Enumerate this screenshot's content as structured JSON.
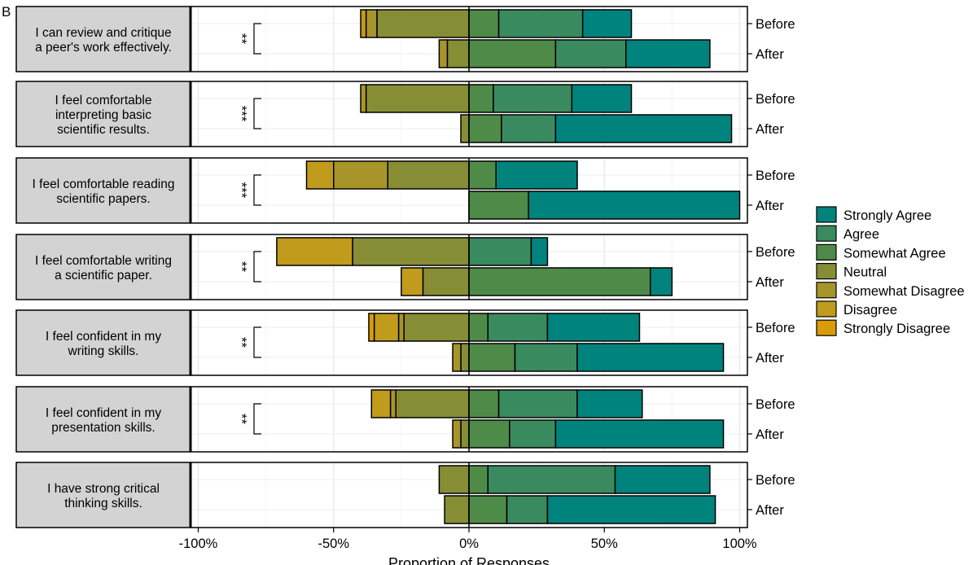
{
  "panel_label": "B",
  "chart_data": {
    "type": "bar",
    "orientation": "horizontal-diverging-stacked",
    "xlabel": "Proportion of Responses",
    "xlim": [
      -100,
      100
    ],
    "x_ticks": [
      -100,
      -50,
      0,
      50,
      100
    ],
    "x_tick_labels": [
      "-100%",
      "-50%",
      "0%",
      "50%",
      "100%"
    ],
    "grid": true,
    "legend_position": "right",
    "groups": [
      "Before",
      "After"
    ],
    "categories_order": [
      "Strongly Disagree",
      "Disagree",
      "Somewhat Disagree",
      "Neutral",
      "Somewhat Agree",
      "Agree",
      "Strongly Agree"
    ],
    "legend": [
      {
        "label": "Strongly Agree",
        "color": "#00837d"
      },
      {
        "label": "Agree",
        "color": "#3a8a60"
      },
      {
        "label": "Somewhat Agree",
        "color": "#4e8b48"
      },
      {
        "label": "Neutral",
        "color": "#878d35"
      },
      {
        "label": "Somewhat Disagree",
        "color": "#a89529"
      },
      {
        "label": "Disagree",
        "color": "#c09b1c"
      },
      {
        "label": "Strongly Disagree",
        "color": "#d99b07"
      }
    ],
    "colors": {
      "Strongly Disagree": "#d99b07",
      "Disagree": "#c09b1c",
      "Somewhat Disagree": "#a89529",
      "Neutral": "#878d35",
      "Somewhat Agree": "#4e8b48",
      "Agree": "#3a8a60",
      "Strongly Agree": "#00837d"
    },
    "panels": [
      {
        "question": [
          "I can review and critique",
          "a peer's work effectively."
        ],
        "significance": "**",
        "bars": [
          {
            "group": "Before",
            "Strongly Disagree": 0,
            "Disagree": 2,
            "Somewhat Disagree": 4,
            "Neutral": 34,
            "Somewhat Agree": 11,
            "Agree": 31,
            "Strongly Agree": 18
          },
          {
            "group": "After",
            "Strongly Disagree": 0,
            "Disagree": 0,
            "Somewhat Disagree": 3,
            "Neutral": 8,
            "Somewhat Agree": 32,
            "Agree": 26,
            "Strongly Agree": 31
          }
        ]
      },
      {
        "question": [
          "I feel comfortable",
          "interpreting basic",
          "scientific results."
        ],
        "significance": "***",
        "bars": [
          {
            "group": "Before",
            "Strongly Disagree": 0,
            "Disagree": 0,
            "Somewhat Disagree": 2,
            "Neutral": 38,
            "Somewhat Agree": 9,
            "Agree": 29,
            "Strongly Agree": 22
          },
          {
            "group": "After",
            "Strongly Disagree": 0,
            "Disagree": 0,
            "Somewhat Disagree": 0,
            "Neutral": 3,
            "Somewhat Agree": 12,
            "Agree": 20,
            "Strongly Agree": 65
          }
        ]
      },
      {
        "question": [
          "I feel comfortable reading",
          "scientific papers."
        ],
        "significance": "***",
        "bars": [
          {
            "group": "Before",
            "Strongly Disagree": 0,
            "Disagree": 10,
            "Somewhat Disagree": 20,
            "Neutral": 30,
            "Somewhat Agree": 10,
            "Agree": 0,
            "Strongly Agree": 30
          },
          {
            "group": "After",
            "Strongly Disagree": 0,
            "Disagree": 0,
            "Somewhat Disagree": 0,
            "Neutral": 0,
            "Somewhat Agree": 22,
            "Agree": 0,
            "Strongly Agree": 78
          }
        ]
      },
      {
        "question": [
          "I feel comfortable writing",
          "a scientific paper."
        ],
        "significance": "**",
        "bars": [
          {
            "group": "Before",
            "Strongly Disagree": 0,
            "Disagree": 28,
            "Somewhat Disagree": 0,
            "Neutral": 43,
            "Somewhat Agree": 0,
            "Agree": 23,
            "Strongly Agree": 6
          },
          {
            "group": "After",
            "Strongly Disagree": 0,
            "Disagree": 8,
            "Somewhat Disagree": 0,
            "Neutral": 17,
            "Somewhat Agree": 67,
            "Agree": 0,
            "Strongly Agree": 8
          }
        ]
      },
      {
        "question": [
          "I feel confident in my",
          "writing skills."
        ],
        "significance": "**",
        "bars": [
          {
            "group": "Before",
            "Strongly Disagree": 2,
            "Disagree": 9,
            "Somewhat Disagree": 2,
            "Neutral": 24,
            "Somewhat Agree": 7,
            "Agree": 22,
            "Strongly Agree": 34
          },
          {
            "group": "After",
            "Strongly Disagree": 0,
            "Disagree": 0,
            "Somewhat Disagree": 3,
            "Neutral": 3,
            "Somewhat Agree": 17,
            "Agree": 23,
            "Strongly Agree": 54
          }
        ]
      },
      {
        "question": [
          "I feel confident in my",
          "presentation skills."
        ],
        "significance": "**",
        "bars": [
          {
            "group": "Before",
            "Strongly Disagree": 0,
            "Disagree": 7,
            "Somewhat Disagree": 2,
            "Neutral": 27,
            "Somewhat Agree": 11,
            "Agree": 29,
            "Strongly Agree": 24
          },
          {
            "group": "After",
            "Strongly Disagree": 0,
            "Disagree": 0,
            "Somewhat Disagree": 3,
            "Neutral": 3,
            "Somewhat Agree": 15,
            "Agree": 17,
            "Strongly Agree": 62
          }
        ]
      },
      {
        "question": [
          "I have strong critical",
          "thinking skills."
        ],
        "significance": "",
        "bars": [
          {
            "group": "Before",
            "Strongly Disagree": 0,
            "Disagree": 0,
            "Somewhat Disagree": 0,
            "Neutral": 11,
            "Somewhat Agree": 7,
            "Agree": 47,
            "Strongly Agree": 35
          },
          {
            "group": "After",
            "Strongly Disagree": 0,
            "Disagree": 0,
            "Somewhat Disagree": 0,
            "Neutral": 9,
            "Somewhat Agree": 14,
            "Agree": 15,
            "Strongly Agree": 62
          }
        ]
      }
    ]
  }
}
